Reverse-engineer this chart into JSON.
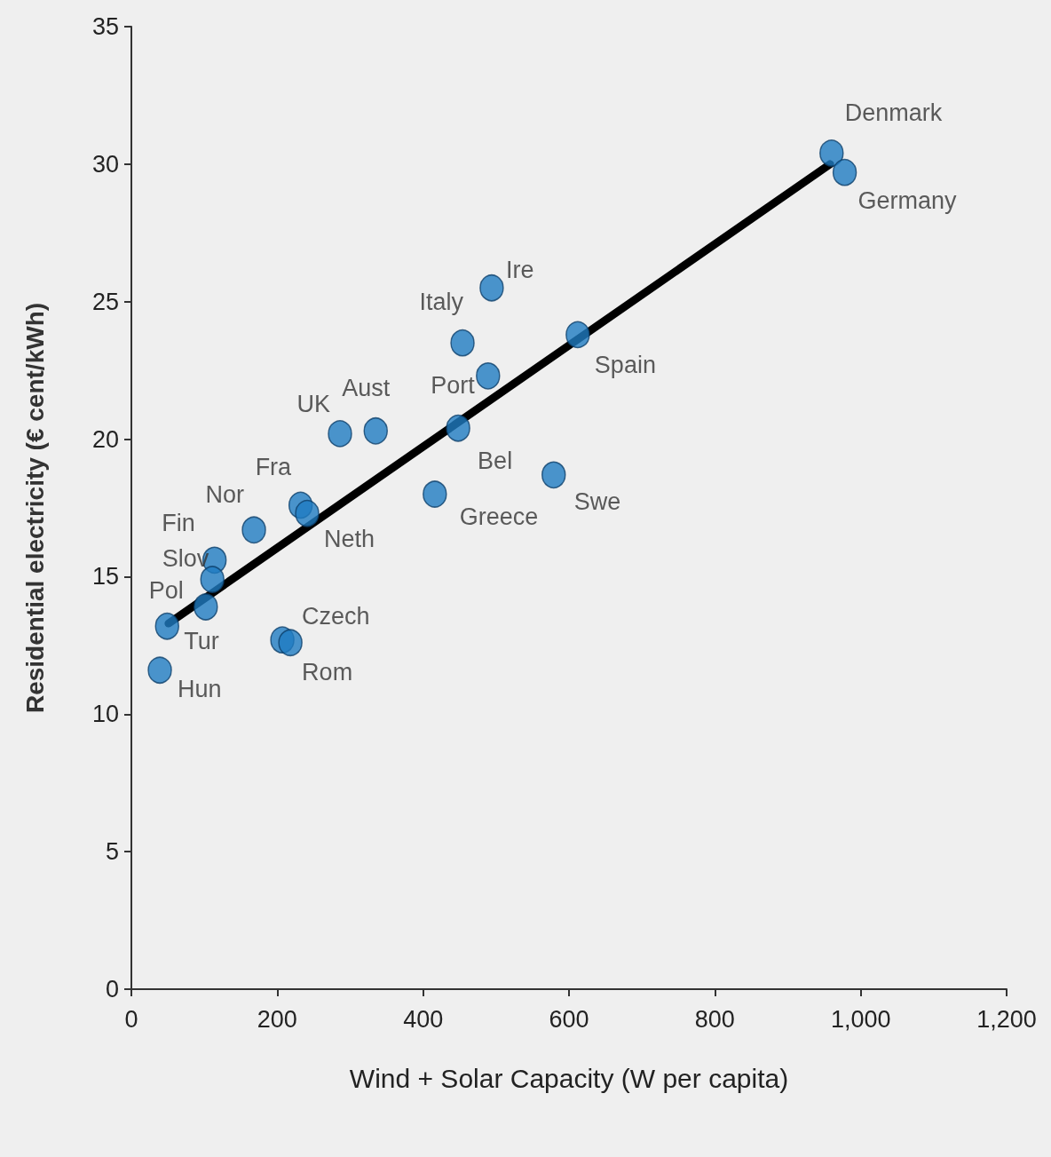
{
  "chart_data": {
    "type": "scatter",
    "xlabel": "Wind + Solar Capacity (W per capita)",
    "ylabel": "Residential electricity (€ cent/kWh)",
    "xlim": [
      0,
      1200
    ],
    "xticks": [
      0,
      200,
      400,
      600,
      800,
      {
        "value": 1000,
        "label": "1,000"
      },
      {
        "value": 1200,
        "label": "1,200"
      }
    ],
    "ylim": [
      0,
      35
    ],
    "yticks": [
      0,
      5,
      10,
      15,
      20,
      25,
      30,
      35
    ],
    "grid": false,
    "marker": "circle",
    "series": [
      {
        "color": "#1f7cc2",
        "x": [
          960,
          978,
          494,
          454,
          612,
          489,
          448,
          286,
          335,
          416,
          579,
          232,
          241,
          168,
          114,
          111,
          102,
          49,
          39,
          207,
          218
        ],
        "values": [
          30.4,
          29.7,
          25.5,
          23.5,
          23.8,
          22.3,
          20.4,
          20.2,
          20.3,
          18.0,
          18.7,
          17.6,
          17.3,
          16.7,
          15.6,
          14.9,
          13.9,
          13.2,
          11.6,
          12.7,
          12.6
        ],
        "value_labels": [
          "Denmark",
          "Germany",
          "Ire",
          "Italy",
          "Spain",
          "Port",
          "Bel",
          "UK",
          "Aust",
          "Greece",
          "Swe",
          "Fra",
          "Neth",
          "Nor",
          "Fin",
          "Slov",
          "Pol",
          "Tur",
          "Hun",
          "Czech",
          "Rom"
        ]
      },
      {
        "type": "line",
        "color": "#000000",
        "marker": "none",
        "line_style": "solid",
        "x": [
          51,
          958
        ],
        "values": [
          13.3,
          30.0
        ]
      }
    ]
  }
}
